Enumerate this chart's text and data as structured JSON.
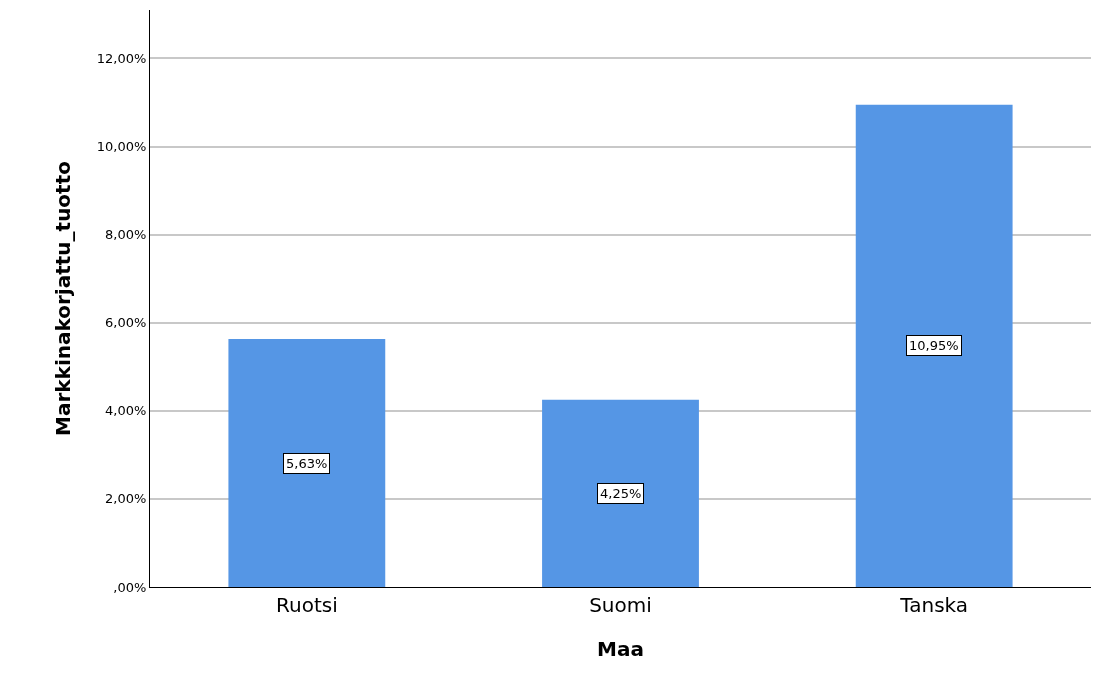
{
  "chart_data": {
    "type": "bar",
    "xlabel": "Maa",
    "ylabel": "Markkinakorjattu_tuotto",
    "categories": [
      "Ruotsi",
      "Suomi",
      "Tanska"
    ],
    "values": [
      5.63,
      4.25,
      10.95
    ],
    "value_labels": [
      "5,63%",
      "4,25%",
      "10,95%"
    ],
    "color": "#5596e5",
    "ylim": [
      0,
      13.1
    ],
    "yticks": [
      {
        "value": 0,
        "label": ",00%"
      },
      {
        "value": 2,
        "label": "2,00%"
      },
      {
        "value": 4,
        "label": "4,00%"
      },
      {
        "value": 6,
        "label": "6,00%"
      },
      {
        "value": 8,
        "label": "8,00%"
      },
      {
        "value": 10,
        "label": "10,00%"
      },
      {
        "value": 12,
        "label": "12,00%"
      }
    ],
    "grid": "y"
  }
}
